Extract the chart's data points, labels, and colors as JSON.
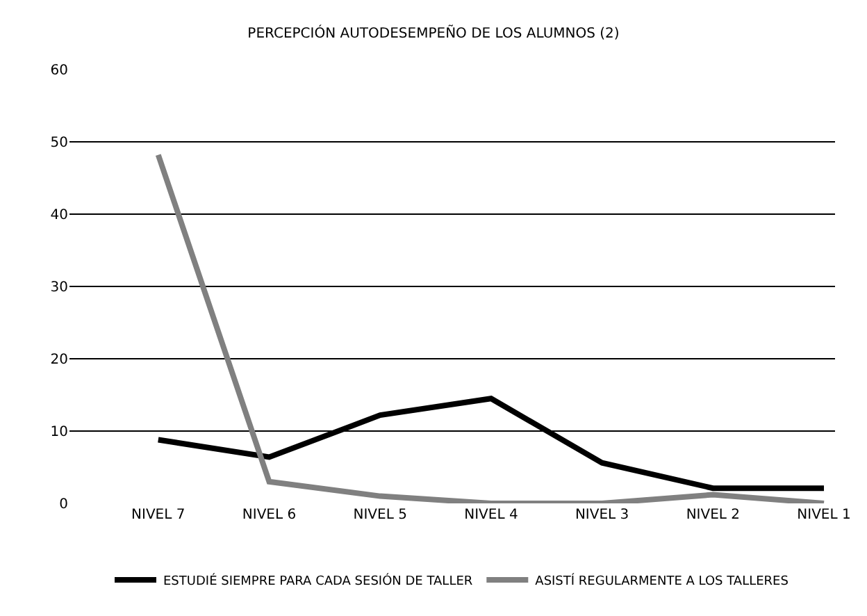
{
  "chart_data": {
    "type": "line",
    "title": "PERCEPCIÓN AUTODESEMPEÑO DE LOS ALUMNOS (2)",
    "categories": [
      "NIVEL 7",
      "NIVEL 6",
      "NIVEL 5",
      "NIVEL 4",
      "NIVEL 3",
      "NIVEL 2",
      "NIVEL 1"
    ],
    "series": [
      {
        "name": "ESTUDIÉ SIEMPRE PARA CADA SESIÓN DE TALLER",
        "color": "#000000",
        "values": [
          8.8,
          6.4,
          12.2,
          14.5,
          5.6,
          2.1,
          2.1
        ]
      },
      {
        "name": "ASISTÍ REGULARMENTE A LOS TALLERES",
        "color": "#808080",
        "values": [
          48.2,
          3.0,
          1.0,
          0,
          0,
          1.2,
          0
        ]
      }
    ],
    "ylim": [
      0,
      60
    ],
    "yticks": [
      0,
      10,
      20,
      30,
      40,
      50,
      60
    ],
    "grid": "y",
    "legend": "bottom",
    "marker": "none",
    "line_style": "solid"
  }
}
